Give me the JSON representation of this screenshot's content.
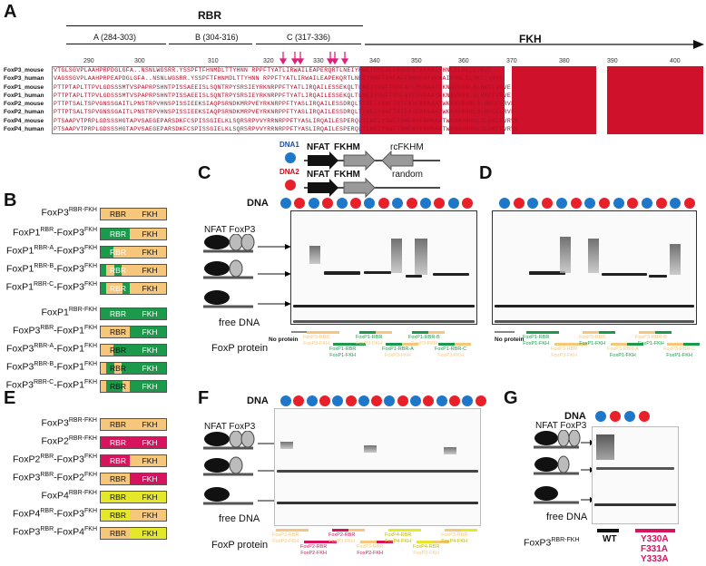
{
  "panels": {
    "A": "A",
    "B": "B",
    "C": "C",
    "D": "D",
    "E": "E",
    "F": "F",
    "G": "G"
  },
  "alignment": {
    "rbr_label": "RBR",
    "fkh_label": "FKH",
    "domains": [
      {
        "label": "A (284-303)"
      },
      {
        "label": "B (304-316)"
      },
      {
        "label": "C (317-336)"
      }
    ],
    "ticks": [
      "290",
      "300",
      "310",
      "320",
      "330",
      "340",
      "350",
      "360",
      "370",
      "380",
      "390",
      "400"
    ],
    "rows": [
      {
        "name": "FoxP3_mouse",
        "seq": "VTGLSGVPLAAHPRPDGLGFA..NSNLWGSRR.YSSPFTFHNMDLTTYHNN RPPFTYATLIRWAILEAPERQRTLNEIYHWFTRMFAFFRNHPATWKNAIRHNLSLHKCFVRVE"
      },
      {
        "name": "FoxP3_human",
        "seq": "VAGSSGVPLAAHPRPEAPDGLGFA..NSNLWGSRR.YSSPFTFHNMDLTTYHNN RPPFTYATLIRWAILEAPEKQRTLNEIYHWFTRMFAFFRNHPATWKNAIRHNLSLHKCFVRVE"
      },
      {
        "name": "FoxP1_mouse",
        "seq": "PTTPTAPLTTPVLGDSSSMTVSPAPRPSHNTPISSAEEISLSQNTRPYSRSIEYRKNRPPFTYATLIRQAILESSEKQLTLNEIYNWFTRMFAYFRRNAATWKNAVRHNLSLHKCFVRVE"
      },
      {
        "name": "FoxP1_human",
        "seq": "PTTPTAPLTTPVLGDSSSMTVSPAPRPSHNTPISSAEEISLSQNTRPYSRSIEYRKNRPPFTYATLIRQAILESSEKQLTLNEIYNWFTRMFAYFRRNAATWKNAVRHNLSLHKCFVRVE"
      },
      {
        "name": "FoxP2_mouse",
        "seq": "PTTPTSALTSPVGNSSGAITLPNSTRPVHNSPISSIEEKSIAQPSRNDKMRPVEYRKNRPPFTYASLIRQAILESSDRQLTLNEIYSWFTRTFAYFRRNAATWKNAVRHNLSLHKCFVRVE"
      },
      {
        "name": "FoxP2_human",
        "seq": "PTTPTSALTSPVGNSSGAITLPNSTRPVHNSPISSIEEKSIAQPSRNDKMRPVEYRKNRPPFTYASLIRQAILESSDRQLTLNEIYSWFTRTFAYFRRNAATWKNAVRHNLSLHKCFVRVE"
      },
      {
        "name": "FoxP4_mouse",
        "seq": "PTSAAPVTPRPLGDSSSHGTAPVSAEGEPARSDKFCSPISSGIELKLSQRSRPVVYRRNRPPFTYASLIRQAILESPERQLTLNEIYNWFTRMFAYFRRNAATWKNAVRHNLSLHKCFVRVE"
      },
      {
        "name": "FoxP4_human",
        "seq": "PTSAAPVTPRPLGDSSSHGTAPVSAEGEPARSDKFCSPISSGIELKLSQRSRPVVYRRNRPPFTYASLIRQAILESPERQLTLNEIYNWFTRMFAYFRRNAATWKNAVRHNLSLHKCFVRVE"
      }
    ]
  },
  "dna_legend": {
    "dna1": "DNA1",
    "dna2": "DNA2",
    "nfat": "NFAT",
    "fkhm": "FKHM",
    "rcfkhm": "rcFKHM",
    "random": "random"
  },
  "panel_b": {
    "rows": [
      {
        "a": "FoxP3",
        "as": "RBR-FKH",
        "b": "",
        "bs": ""
      },
      {
        "a": "FoxP1",
        "as": "RBR",
        "b": "-FoxP3",
        "bs": "FKH"
      },
      {
        "a": "FoxP1",
        "as": "RBR-A",
        "b": "-FoxP3",
        "bs": "FKH"
      },
      {
        "a": "FoxP1",
        "as": "RBR-B",
        "b": "-FoxP3",
        "bs": "FKH"
      },
      {
        "a": "FoxP1",
        "as": "RBR-C",
        "b": "-FoxP3",
        "bs": "FKH"
      },
      {
        "a": "FoxP1",
        "as": "RBR-FKH",
        "b": "",
        "bs": ""
      },
      {
        "a": "FoxP3",
        "as": "RBR",
        "b": "-FoxP1",
        "bs": "FKH"
      },
      {
        "a": "FoxP3",
        "as": "RBR-A",
        "b": "-FoxP1",
        "bs": "FKH"
      },
      {
        "a": "FoxP3",
        "as": "RBR-B",
        "b": "-FoxP1",
        "bs": "FKH"
      },
      {
        "a": "FoxP3",
        "as": "RBR-C",
        "b": "-FoxP1",
        "bs": "FKH"
      }
    ],
    "rbr": "RBR",
    "fkh": "FKH"
  },
  "panel_e": {
    "rows": [
      {
        "a": "FoxP3",
        "as": "RBR-FKH",
        "b": "",
        "bs": ""
      },
      {
        "a": "FoxP2",
        "as": "RBR-FKH",
        "b": "",
        "bs": ""
      },
      {
        "a": "FoxP2",
        "as": "RBR",
        "b": "-FoxP3",
        "bs": "FKH"
      },
      {
        "a": "FoxP3",
        "as": "RBR",
        "b": "-FoxP2",
        "bs": "FKH"
      },
      {
        "a": "FoxP4",
        "as": "RBR-FKH",
        "b": "",
        "bs": ""
      },
      {
        "a": "FoxP4",
        "as": "RBR",
        "b": "-FoxP3",
        "bs": "FKH"
      },
      {
        "a": "FoxP3",
        "as": "RBR",
        "b": "-FoxP4",
        "bs": "FKH"
      }
    ]
  },
  "gel_labels": {
    "dna": "DNA",
    "nfat": "NFAT",
    "foxp3": "FoxP3",
    "free_dna": "free DNA",
    "foxp_protein": "FoxP protein",
    "no_protein": "No protein"
  },
  "panel_c_caps": [
    [
      "FoxP3-RBR",
      "FoxP3-FKH"
    ],
    [
      "FoxP1-RBR",
      "FoxP1-FKH"
    ],
    [
      "FoxP1-RBR",
      "FoxP3-FKH"
    ],
    [
      "FoxP1-RBR-A",
      "FoxP3-FKH"
    ],
    [
      "FoxP1-RBR-B",
      "FoxP3-FKH"
    ],
    [
      "FoxP1-RBR-C",
      "FoxP3-FKH"
    ]
  ],
  "panel_d_caps": [
    [
      "FoxP1-RBR",
      "FoxP1-FKH"
    ],
    [
      "FoxP3-RBR",
      "FoxP3-FKH"
    ],
    [
      "FoxP3-RBR",
      "FoxP1-FKH"
    ],
    [
      "FoxP3-RBR-A",
      "FoxP1-FKH"
    ],
    [
      "FoxP3-RBR-B",
      "FoxP1-FKH"
    ],
    [
      "FoxP3-RBR-C",
      "FoxP1-FKH"
    ]
  ],
  "panel_f_caps": [
    [
      "FoxP3-RBR",
      "FoxP3-FKH"
    ],
    [
      "FoxP2-RBR",
      "FoxP2-FKH"
    ],
    [
      "FoxP2-RBR",
      "FoxP3-FKH"
    ],
    [
      "FoxP3-RBR",
      "FoxP2-FKH"
    ],
    [
      "FoxP4-RBR",
      "FoxP4-FKH"
    ],
    [
      "FoxP4-RBR",
      "FoxP3-FKH"
    ],
    [
      "FoxP3-RBR",
      "FoxP4-FKH"
    ]
  ],
  "panel_g": {
    "wt": "WT",
    "mut": [
      "Y330A",
      "F331A",
      "Y333A"
    ],
    "protein_a": "FoxP3",
    "protein_as": "RBR-FKH"
  },
  "colors": {
    "foxp3": "#f6c77a",
    "foxp1": "#1a9a4a",
    "foxp2": "#d6145e",
    "foxp4": "#e5e82a",
    "dna1": "#1f77c9",
    "dna2": "#e8202a",
    "highlight": "#d0112b"
  }
}
